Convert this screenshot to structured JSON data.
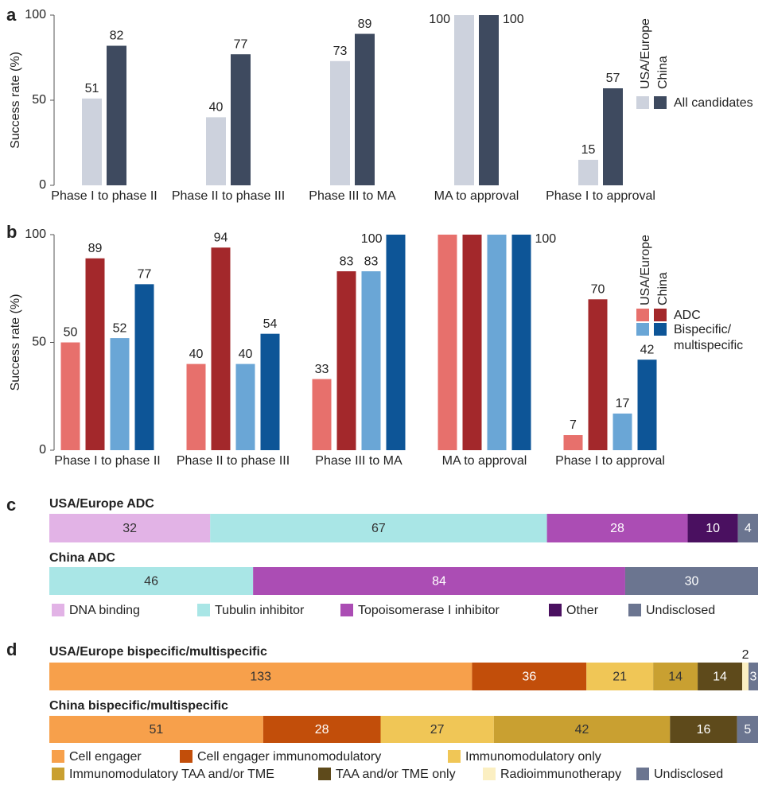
{
  "chart_data": [
    {
      "type": "bar",
      "panel": "a",
      "ylabel": "Success rate (%)",
      "categories": [
        "Phase I to phase II",
        "Phase II to phase III",
        "Phase III to MA",
        "MA to approval",
        "Phase I to approval"
      ],
      "ylim": [
        0,
        100
      ],
      "yticks": [
        0,
        50,
        100
      ],
      "legend_columns": [
        "USA/Europe",
        "China"
      ],
      "legend_rows": [
        "All candidates"
      ],
      "series": [
        {
          "color": "#cdd2dd",
          "values": [
            51,
            40,
            73,
            100,
            15
          ]
        },
        {
          "color": "#3e4a5f",
          "values": [
            82,
            77,
            89,
            100,
            57
          ]
        }
      ]
    },
    {
      "type": "bar",
      "panel": "b",
      "ylabel": "Success rate (%)",
      "categories": [
        "Phase I to phase II",
        "Phase II to phase III",
        "Phase III to MA",
        "MA to approval",
        "Phase I to approval"
      ],
      "ylim": [
        0,
        100
      ],
      "yticks": [
        0,
        50,
        100
      ],
      "legend_columns": [
        "USA/Europe",
        "China"
      ],
      "legend_rows": [
        "ADC",
        "Bispecific/\nmultispecific"
      ],
      "series": [
        {
          "color": "#e7706c",
          "values": [
            50,
            40,
            33,
            100,
            7
          ],
          "value_labels": [
            "50",
            "40",
            "33",
            null,
            "7"
          ]
        },
        {
          "color": "#a3282b",
          "values": [
            89,
            94,
            83,
            100,
            70
          ],
          "value_labels": [
            "89",
            "94",
            "83",
            null,
            "70"
          ]
        },
        {
          "color": "#6aa6d6",
          "values": [
            52,
            40,
            83,
            100,
            17
          ],
          "value_labels": [
            "52",
            "40",
            "83",
            null,
            "17"
          ]
        },
        {
          "color": "#0d5597",
          "values": [
            77,
            54,
            100,
            100,
            42
          ]
        }
      ]
    },
    {
      "type": "stackedbar",
      "panel": "c",
      "categories": [
        "USA/Europe ADC",
        "China ADC"
      ],
      "series": [
        {
          "name": "DNA binding",
          "color": "#e2b3e6",
          "values": [
            32,
            0
          ]
        },
        {
          "name": "Tubulin inhibitor",
          "color": "#a9e6e6",
          "values": [
            67,
            46
          ]
        },
        {
          "name": "Topoisomerase I inhibitor",
          "color": "#ab4db4",
          "values": [
            28,
            84
          ]
        },
        {
          "name": "Other",
          "color": "#4a1060",
          "values": [
            10,
            0
          ]
        },
        {
          "name": "Undisclosed",
          "color": "#6b7590",
          "values": [
            4,
            30
          ]
        }
      ]
    },
    {
      "type": "stackedbar",
      "panel": "d",
      "categories": [
        "USA/Europe bispecific/multispecific",
        "China bispecific/multispecific"
      ],
      "series": [
        {
          "name": "Cell engager",
          "color": "#f7a04b",
          "values": [
            133,
            51
          ]
        },
        {
          "name": "Cell engager immunomodulatory",
          "color": "#c24e0a",
          "values": [
            36,
            28
          ]
        },
        {
          "name": "Immunomodulatory only",
          "color": "#f0c656",
          "values": [
            21,
            27
          ]
        },
        {
          "name": "Immunomodulatory TAA and/or TME",
          "color": "#c9a031",
          "values": [
            14,
            42
          ]
        },
        {
          "name": "TAA and/or TME only",
          "color": "#5e4a1b",
          "values": [
            14,
            16
          ]
        },
        {
          "name": "Radioimmunotherapy",
          "color": "#fbefc2",
          "values": [
            2,
            0
          ]
        },
        {
          "name": "Undisclosed",
          "color": "#6b7590",
          "values": [
            3,
            5
          ]
        }
      ]
    }
  ]
}
